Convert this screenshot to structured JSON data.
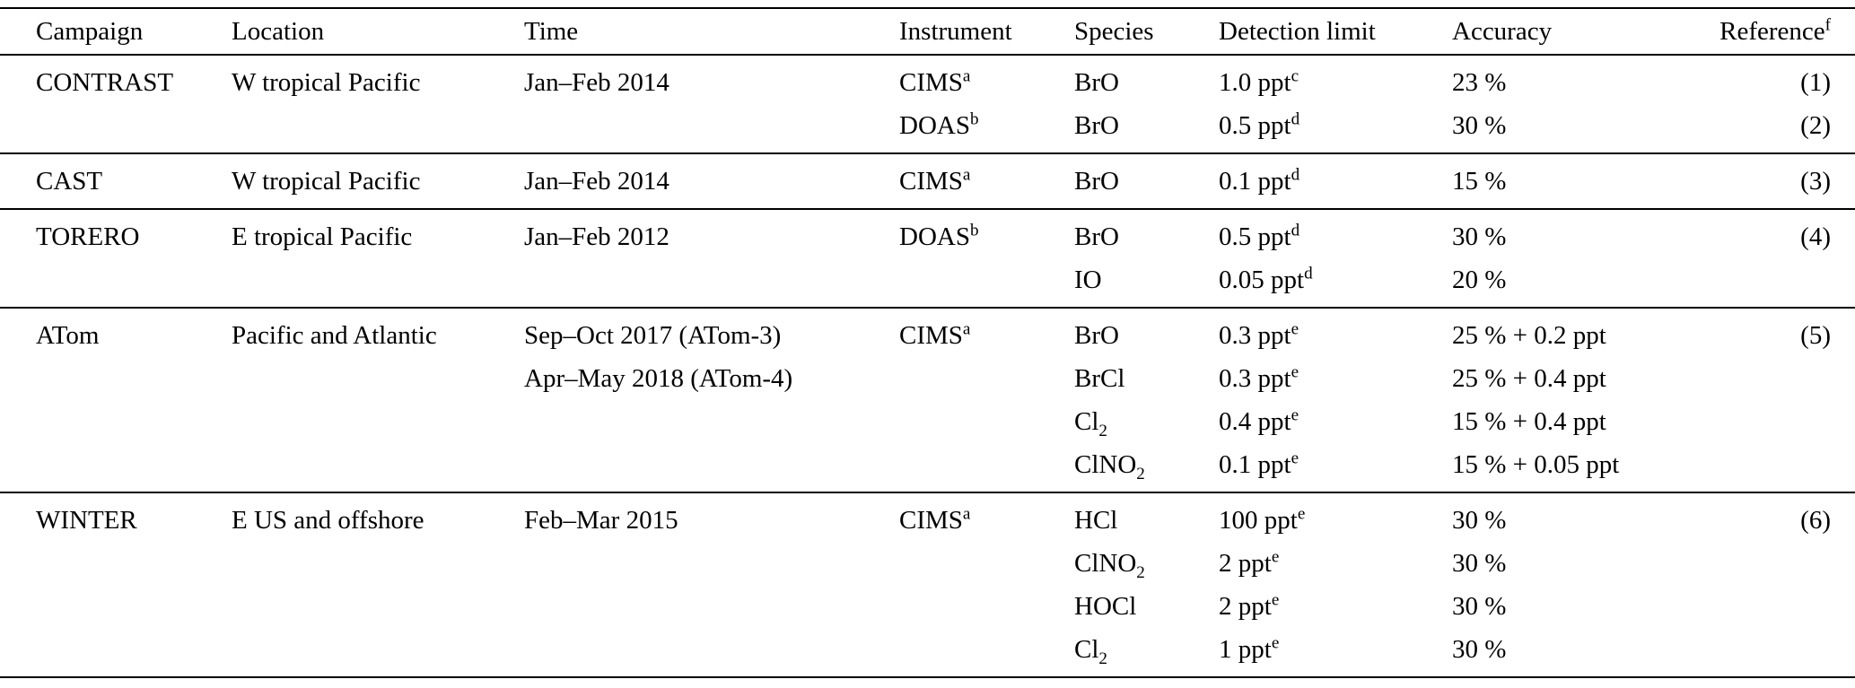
{
  "table": {
    "headers": {
      "campaign": "Campaign",
      "location": "Location",
      "time": "Time",
      "instrument": "Instrument",
      "species": "Species",
      "detection": "Detection limit",
      "accuracy": "Accuracy",
      "reference": "Reference",
      "reference_sup": "f"
    },
    "groups": [
      {
        "lines": [
          {
            "campaign": "CONTRAST",
            "location": "W tropical Pacific",
            "time": "Jan–Feb 2014",
            "instrument": "CIMS",
            "instrument_sup": "a",
            "species": "BrO",
            "detection": "1.0 ppt",
            "detection_sup": "c",
            "accuracy": "23 %",
            "reference": "(1)"
          },
          {
            "instrument": "DOAS",
            "instrument_sup": "b",
            "species": "BrO",
            "detection": "0.5 ppt",
            "detection_sup": "d",
            "accuracy": "30 %",
            "reference": "(2)"
          }
        ]
      },
      {
        "lines": [
          {
            "campaign": "CAST",
            "location": "W tropical Pacific",
            "time": "Jan–Feb 2014",
            "instrument": "CIMS",
            "instrument_sup": "a",
            "species": "BrO",
            "detection": "0.1 ppt",
            "detection_sup": "d",
            "accuracy": "15 %",
            "reference": "(3)"
          }
        ]
      },
      {
        "lines": [
          {
            "campaign": "TORERO",
            "location": "E tropical Pacific",
            "time": "Jan–Feb 2012",
            "instrument": "DOAS",
            "instrument_sup": "b",
            "species": "BrO",
            "detection": "0.5 ppt",
            "detection_sup": "d",
            "accuracy": "30 %",
            "reference": "(4)"
          },
          {
            "species": "IO",
            "detection": "0.05 ppt",
            "detection_sup": "d",
            "accuracy": "20 %"
          }
        ]
      },
      {
        "lines": [
          {
            "campaign": "ATom",
            "location": "Pacific and Atlantic",
            "time": "Sep–Oct 2017 (ATom-3)",
            "instrument": "CIMS",
            "instrument_sup": "a",
            "species": "BrO",
            "detection": "0.3 ppt",
            "detection_sup": "e",
            "accuracy": "25 % + 0.2 ppt",
            "reference": "(5)"
          },
          {
            "time": "Apr–May 2018 (ATom-4)",
            "species": "BrCl",
            "detection": "0.3 ppt",
            "detection_sup": "e",
            "accuracy": "25 % + 0.4 ppt"
          },
          {
            "species": "Cl",
            "species_sub": "2",
            "detection": "0.4 ppt",
            "detection_sup": "e",
            "accuracy": "15 % + 0.4 ppt"
          },
          {
            "species": "ClNO",
            "species_sub": "2",
            "detection": "0.1 ppt",
            "detection_sup": "e",
            "accuracy": "15 % + 0.05 ppt"
          }
        ]
      },
      {
        "lines": [
          {
            "campaign": "WINTER",
            "location": "E US and offshore",
            "time": "Feb–Mar 2015",
            "instrument": "CIMS",
            "instrument_sup": "a",
            "species": "HCl",
            "detection": "100 ppt",
            "detection_sup": "e",
            "accuracy": "30 %",
            "reference": "(6)"
          },
          {
            "species": "ClNO",
            "species_sub": "2",
            "detection": "2 ppt",
            "detection_sup": "e",
            "accuracy": "30 %"
          },
          {
            "species": "HOCl",
            "detection": "2 ppt",
            "detection_sup": "e",
            "accuracy": "30 %"
          },
          {
            "species": "Cl",
            "species_sub": "2",
            "detection": "1 ppt",
            "detection_sup": "e",
            "accuracy": "30 %"
          }
        ]
      }
    ]
  }
}
